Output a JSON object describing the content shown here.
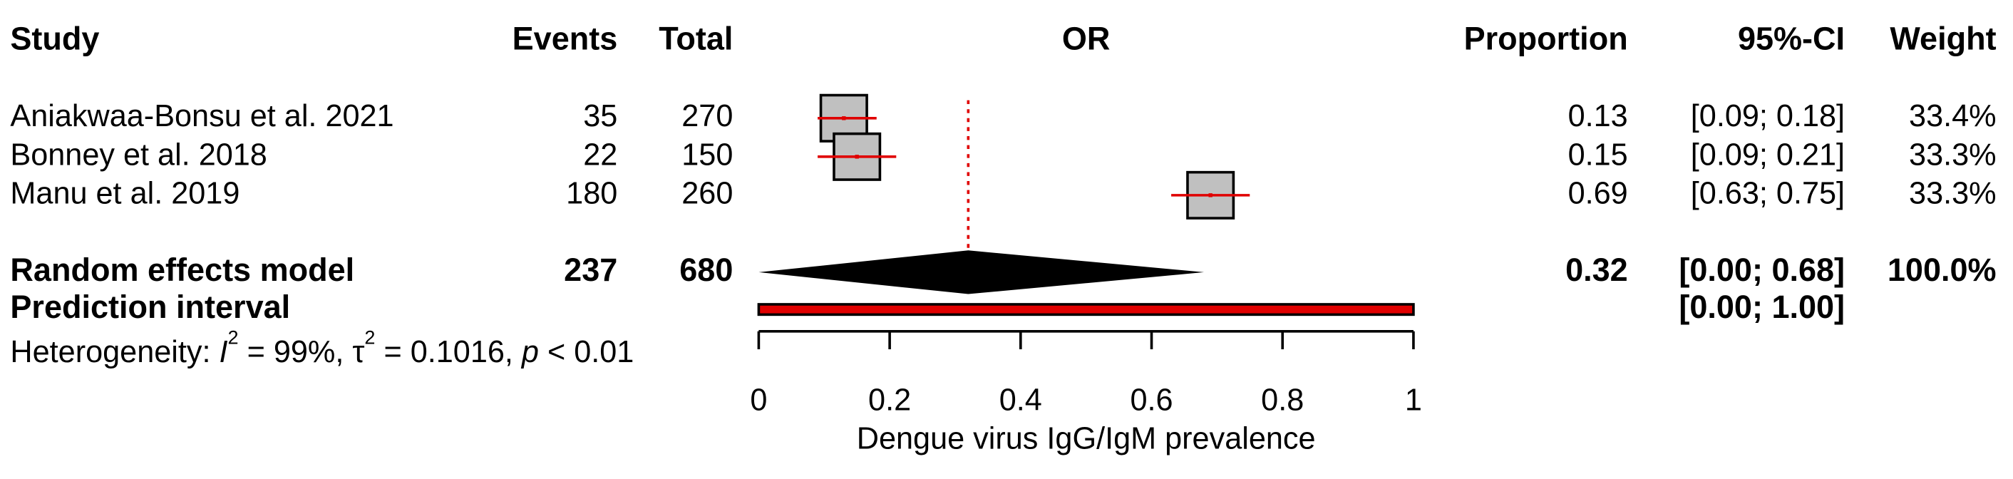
{
  "chart_data": {
    "type": "forest",
    "headers": {
      "study": "Study",
      "events": "Events",
      "total": "Total",
      "plot": "OR",
      "proportion": "Proportion",
      "ci": "95%-CI",
      "weight": "Weight"
    },
    "studies": [
      {
        "name": "Aniakwaa-Bonsu et al. 2021",
        "events": 35,
        "total": 270,
        "proportion": 0.13,
        "ci_lower": 0.09,
        "ci_upper": 0.18,
        "ci_label": "[0.09; 0.18]",
        "weight": 33.4,
        "weight_label": "33.4%"
      },
      {
        "name": "Bonney et al. 2018",
        "events": 22,
        "total": 150,
        "proportion": 0.15,
        "ci_lower": 0.09,
        "ci_upper": 0.21,
        "ci_label": "[0.09; 0.21]",
        "weight": 33.3,
        "weight_label": "33.3%"
      },
      {
        "name": "Manu et al. 2019",
        "events": 180,
        "total": 260,
        "proportion": 0.69,
        "ci_lower": 0.63,
        "ci_upper": 0.75,
        "ci_label": "[0.63; 0.75]",
        "weight": 33.3,
        "weight_label": "33.3%"
      }
    ],
    "summary": {
      "name": "Random effects model",
      "events": 237,
      "total": 680,
      "proportion": 0.32,
      "ci_lower": 0,
      "ci_upper": 0.68,
      "ci_label": "[0.00; 0.68]",
      "weight": 100,
      "weight_label": "100.0%"
    },
    "prediction": {
      "name": "Prediction interval",
      "lower": 0,
      "upper": 1,
      "label": "[0.00; 1.00]",
      "color": "#e00000"
    },
    "heterogeneity": [
      {
        "text": "Heterogeneity: "
      },
      {
        "text": "I",
        "italic": true
      },
      {
        "text": "2",
        "sup": true
      },
      {
        "text": " = 99%, "
      },
      {
        "text": "τ"
      },
      {
        "text": "2",
        "sup": true
      },
      {
        "text": " = 0.1016, "
      },
      {
        "text": "p",
        "italic": true
      },
      {
        "text": " < 0.01"
      }
    ],
    "square_color": "#c0c0c0",
    "ci_color": "#e00000",
    "reference_color": "#e00000",
    "xlim": [
      0,
      1
    ],
    "xticks": [
      0,
      0.2,
      0.4,
      0.6,
      0.8,
      1
    ],
    "xlabel": "Dengue virus IgG/IgM prevalence"
  }
}
